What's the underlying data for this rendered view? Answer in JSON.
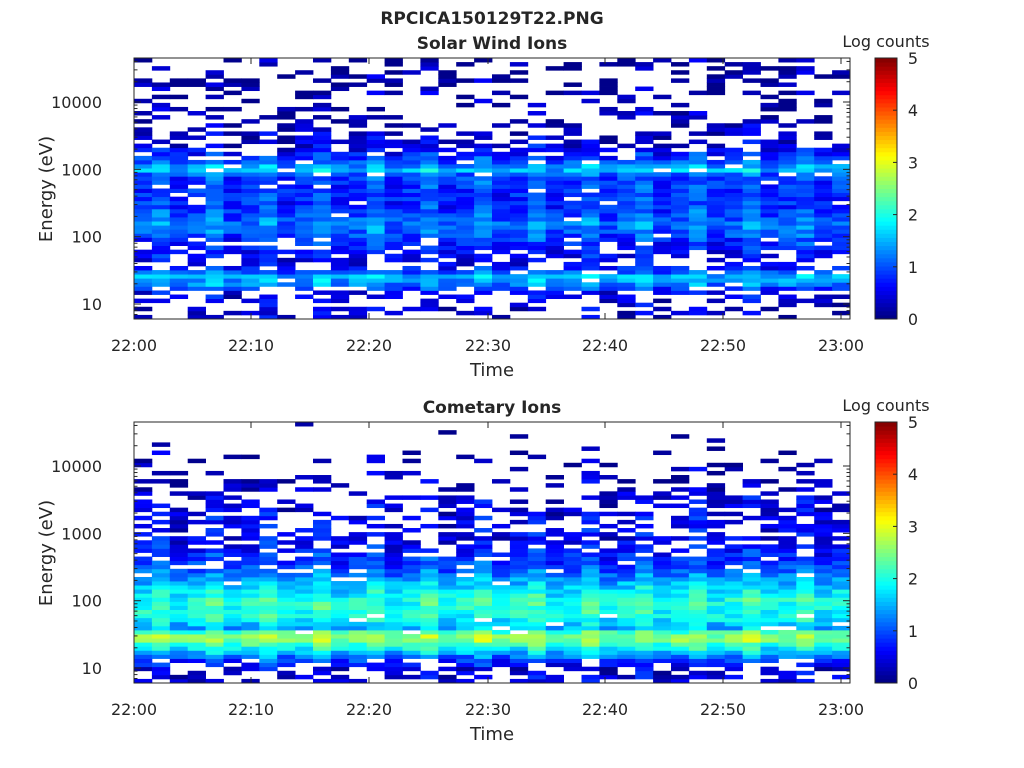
{
  "figure_title": "RPCICA150129T22.PNG",
  "chart_data": [
    {
      "type": "heatmap",
      "title": "Solar Wind Ions",
      "xlabel": "Time",
      "ylabel": "Energy (eV)",
      "x_ticks": [
        "22:00",
        "22:10",
        "22:20",
        "22:30",
        "22:40",
        "22:50",
        "23:00"
      ],
      "x_range": [
        "22:00",
        "23:00"
      ],
      "y_scale": "log",
      "y_ticks": [
        10,
        100,
        1000,
        10000
      ],
      "y_tick_labels": [
        "10",
        "100",
        "1000",
        "10000"
      ],
      "y_range_eV": [
        6,
        45000
      ],
      "colorbar": {
        "label": "Log counts",
        "ticks": [
          "0",
          "1",
          "2",
          "3",
          "4",
          "5"
        ],
        "range": [
          0,
          5
        ],
        "colormap": "jet"
      },
      "profile": {
        "energy_eV": [
          7,
          10,
          15,
          20,
          26,
          32,
          40,
          60,
          90,
          120,
          150,
          200,
          300,
          450,
          650,
          800,
          1000,
          1300,
          2000,
          3000,
          5000,
          8000,
          12000,
          20000,
          30000,
          40000
        ],
        "typical_log_counts": [
          0.3,
          0.3,
          0.5,
          1.3,
          1.5,
          0.8,
          0.5,
          0.6,
          0.8,
          1.1,
          1.2,
          1.0,
          0.8,
          0.8,
          0.9,
          0.9,
          1.6,
          1.0,
          0.5,
          0.3,
          0.2,
          0.1,
          0.1,
          0.1,
          0.1,
          0.1
        ],
        "occupancy": [
          0.35,
          0.3,
          0.55,
          0.95,
          1.0,
          0.85,
          0.45,
          0.7,
          0.9,
          1.0,
          1.0,
          0.95,
          0.95,
          0.95,
          0.95,
          0.95,
          0.9,
          0.85,
          0.7,
          0.5,
          0.35,
          0.3,
          0.3,
          0.3,
          0.3,
          0.35
        ]
      }
    },
    {
      "type": "heatmap",
      "title": "Cometary Ions",
      "xlabel": "Time",
      "ylabel": "Energy (eV)",
      "x_ticks": [
        "22:00",
        "22:10",
        "22:20",
        "22:30",
        "22:40",
        "22:50",
        "23:00"
      ],
      "x_range": [
        "22:00",
        "23:00"
      ],
      "y_scale": "log",
      "y_ticks": [
        10,
        100,
        1000,
        10000
      ],
      "y_tick_labels": [
        "10",
        "100",
        "1000",
        "10000"
      ],
      "y_range_eV": [
        6,
        45000
      ],
      "colorbar": {
        "label": "Log counts",
        "ticks": [
          "0",
          "1",
          "2",
          "3",
          "4",
          "5"
        ],
        "range": [
          0,
          5
        ],
        "colormap": "jet"
      },
      "profile": {
        "energy_eV": [
          10,
          15,
          20,
          26,
          32,
          40,
          55,
          75,
          100,
          130,
          170,
          220,
          300,
          400,
          550,
          800,
          1100,
          1600,
          2300,
          3500,
          5000,
          8000,
          12000,
          20000,
          30000
        ],
        "typical_log_counts": [
          0.4,
          1.2,
          1.9,
          2.5,
          2.6,
          1.4,
          1.9,
          2.0,
          2.0,
          1.8,
          1.6,
          1.3,
          1.0,
          0.8,
          0.7,
          0.5,
          0.5,
          0.5,
          0.4,
          0.4,
          0.3,
          0.2,
          0.1,
          0.1,
          0.1
        ],
        "occupancy": [
          0.45,
          1.0,
          1.0,
          1.0,
          1.0,
          0.85,
          0.9,
          1.0,
          1.0,
          1.0,
          1.0,
          0.95,
          0.9,
          0.85,
          0.8,
          0.65,
          0.6,
          0.6,
          0.55,
          0.45,
          0.3,
          0.25,
          0.12,
          0.06,
          0.04
        ]
      }
    }
  ]
}
